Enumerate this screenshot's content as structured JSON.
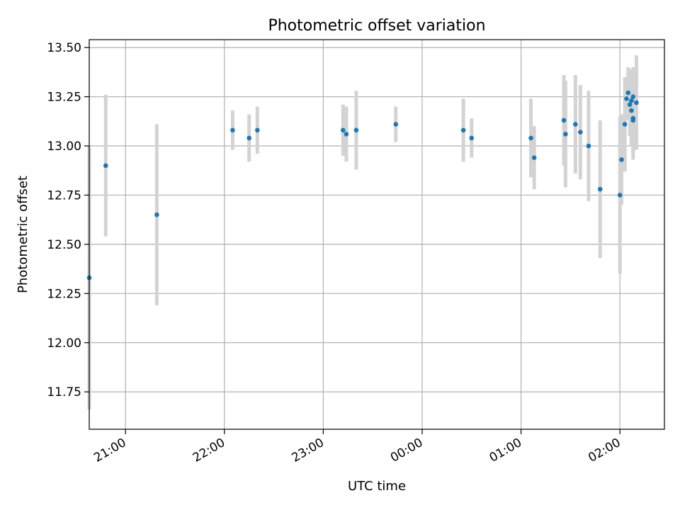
{
  "chart_data": {
    "type": "scatter",
    "title": "Photometric offset variation",
    "xlabel": "UTC time",
    "ylabel": "Photometric offset",
    "grid": true,
    "x_axis_kind": "time",
    "xlim": [
      "20:38",
      "02:27"
    ],
    "ylim": [
      11.56,
      13.54
    ],
    "x_ticks": [
      "21:00",
      "22:00",
      "23:00",
      "00:00",
      "01:00",
      "02:00"
    ],
    "y_ticks": [
      "11.75",
      "12.00",
      "12.25",
      "12.50",
      "12.75",
      "13.00",
      "13.25",
      "13.50"
    ],
    "marker_color": "#1f77b4",
    "errorbar_color": "#d3d3d3",
    "points": [
      {
        "t": "20:38",
        "y": 12.33,
        "err": 0.67
      },
      {
        "t": "20:48",
        "y": 12.9,
        "err": 0.36
      },
      {
        "t": "21:19",
        "y": 12.65,
        "err": 0.46
      },
      {
        "t": "22:05",
        "y": 13.08,
        "err": 0.1
      },
      {
        "t": "22:15",
        "y": 13.04,
        "err": 0.12
      },
      {
        "t": "22:20",
        "y": 13.08,
        "err": 0.12
      },
      {
        "t": "23:12",
        "y": 13.08,
        "err": 0.13
      },
      {
        "t": "23:14",
        "y": 13.06,
        "err": 0.14
      },
      {
        "t": "23:20",
        "y": 13.08,
        "err": 0.2
      },
      {
        "t": "23:44",
        "y": 13.11,
        "err": 0.09
      },
      {
        "t": "00:25",
        "y": 13.08,
        "err": 0.16
      },
      {
        "t": "00:30",
        "y": 13.04,
        "err": 0.1
      },
      {
        "t": "01:06",
        "y": 13.04,
        "err": 0.2
      },
      {
        "t": "01:08",
        "y": 12.94,
        "err": 0.16
      },
      {
        "t": "01:26",
        "y": 13.13,
        "err": 0.23
      },
      {
        "t": "01:27",
        "y": 13.06,
        "err": 0.27
      },
      {
        "t": "01:33",
        "y": 13.11,
        "err": 0.25
      },
      {
        "t": "01:36",
        "y": 13.07,
        "err": 0.24
      },
      {
        "t": "01:41",
        "y": 13.0,
        "err": 0.28
      },
      {
        "t": "01:48",
        "y": 12.78,
        "err": 0.35
      },
      {
        "t": "02:00",
        "y": 12.75,
        "err": 0.4
      },
      {
        "t": "02:01",
        "y": 12.93,
        "err": 0.23
      },
      {
        "t": "02:03",
        "y": 13.11,
        "err": 0.24
      },
      {
        "t": "02:04",
        "y": 13.24,
        "err": 0.11
      },
      {
        "t": "02:05",
        "y": 13.27,
        "err": 0.13
      },
      {
        "t": "02:06",
        "y": 13.21,
        "err": 0.16
      },
      {
        "t": "02:07",
        "y": 13.23,
        "err": 0.16
      },
      {
        "t": "02:07",
        "y": 13.18,
        "err": 0.18
      },
      {
        "t": "02:08",
        "y": 13.14,
        "err": 0.18
      },
      {
        "t": "02:08",
        "y": 13.13,
        "err": 0.2
      },
      {
        "t": "02:08",
        "y": 13.25,
        "err": 0.15
      },
      {
        "t": "02:10",
        "y": 13.22,
        "err": 0.24
      }
    ]
  }
}
